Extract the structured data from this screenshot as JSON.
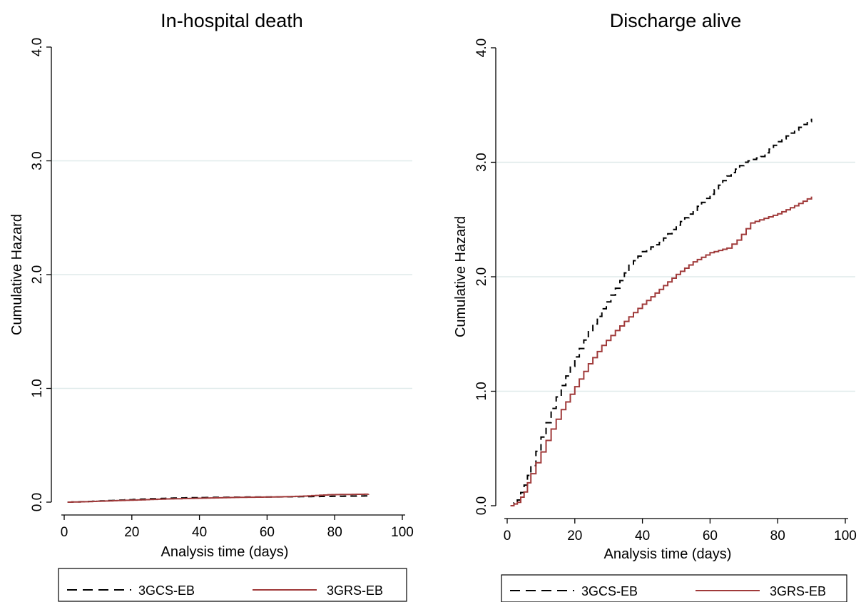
{
  "chart_data": [
    {
      "type": "line",
      "title": "In-hospital death",
      "xlabel": "Analysis time (days)",
      "ylabel": "Cumulative Hazard",
      "xlim": [
        0,
        100
      ],
      "ylim": [
        0,
        4
      ],
      "xticks": [
        "0",
        "20",
        "40",
        "60",
        "80",
        "100"
      ],
      "yticks": [
        "0.0",
        "1.0",
        "2.0",
        "3.0",
        "4.0"
      ],
      "grid": true,
      "legend": "bottom",
      "series": [
        {
          "name": "3GCS-EB",
          "color": "#000000",
          "style": "dashed",
          "x": [
            1,
            6,
            12,
            18,
            24,
            30,
            36,
            42,
            48,
            54,
            60,
            66,
            72,
            78,
            84,
            90
          ],
          "y": [
            0.0,
            0.005,
            0.012,
            0.02,
            0.028,
            0.034,
            0.038,
            0.041,
            0.043,
            0.045,
            0.046,
            0.047,
            0.049,
            0.051,
            0.053,
            0.055
          ]
        },
        {
          "name": "3GRS-EB",
          "color": "#a03a3a",
          "style": "solid",
          "x": [
            1,
            6,
            12,
            18,
            24,
            30,
            36,
            42,
            48,
            54,
            60,
            66,
            72,
            78,
            84,
            90
          ],
          "y": [
            0.0,
            0.004,
            0.01,
            0.016,
            0.022,
            0.028,
            0.032,
            0.036,
            0.04,
            0.043,
            0.045,
            0.048,
            0.055,
            0.065,
            0.068,
            0.07
          ]
        }
      ]
    },
    {
      "type": "line",
      "title": "Discharge alive",
      "xlabel": "Analysis time (days)",
      "ylabel": "Cumulative Hazard",
      "xlim": [
        0,
        100
      ],
      "ylim": [
        0,
        4
      ],
      "xticks": [
        "0",
        "20",
        "40",
        "60",
        "80",
        "100"
      ],
      "yticks": [
        "0.0",
        "1.0",
        "2.0",
        "3.0",
        "4.0"
      ],
      "grid": true,
      "legend": "bottom",
      "series": [
        {
          "name": "3GCS-EB",
          "color": "#000000",
          "style": "dashed",
          "x": [
            1,
            3,
            5,
            7,
            10,
            13,
            16,
            20,
            24,
            28,
            32,
            36,
            40,
            45,
            50,
            55,
            60,
            65,
            70,
            75,
            80,
            85,
            90
          ],
          "y": [
            0.0,
            0.05,
            0.18,
            0.35,
            0.6,
            0.85,
            1.05,
            1.3,
            1.52,
            1.72,
            1.9,
            2.1,
            2.22,
            2.3,
            2.45,
            2.58,
            2.72,
            2.88,
            3.0,
            3.05,
            3.18,
            3.28,
            3.38
          ]
        },
        {
          "name": "3GRS-EB",
          "color": "#a03a3a",
          "style": "solid",
          "x": [
            1,
            3,
            5,
            7,
            10,
            13,
            16,
            20,
            24,
            28,
            32,
            36,
            40,
            45,
            50,
            55,
            60,
            65,
            68,
            72,
            80,
            85,
            90
          ],
          "y": [
            0.0,
            0.03,
            0.12,
            0.28,
            0.47,
            0.67,
            0.84,
            1.04,
            1.24,
            1.4,
            1.53,
            1.65,
            1.76,
            1.89,
            2.02,
            2.13,
            2.21,
            2.25,
            2.32,
            2.47,
            2.55,
            2.62,
            2.7
          ]
        }
      ]
    }
  ]
}
